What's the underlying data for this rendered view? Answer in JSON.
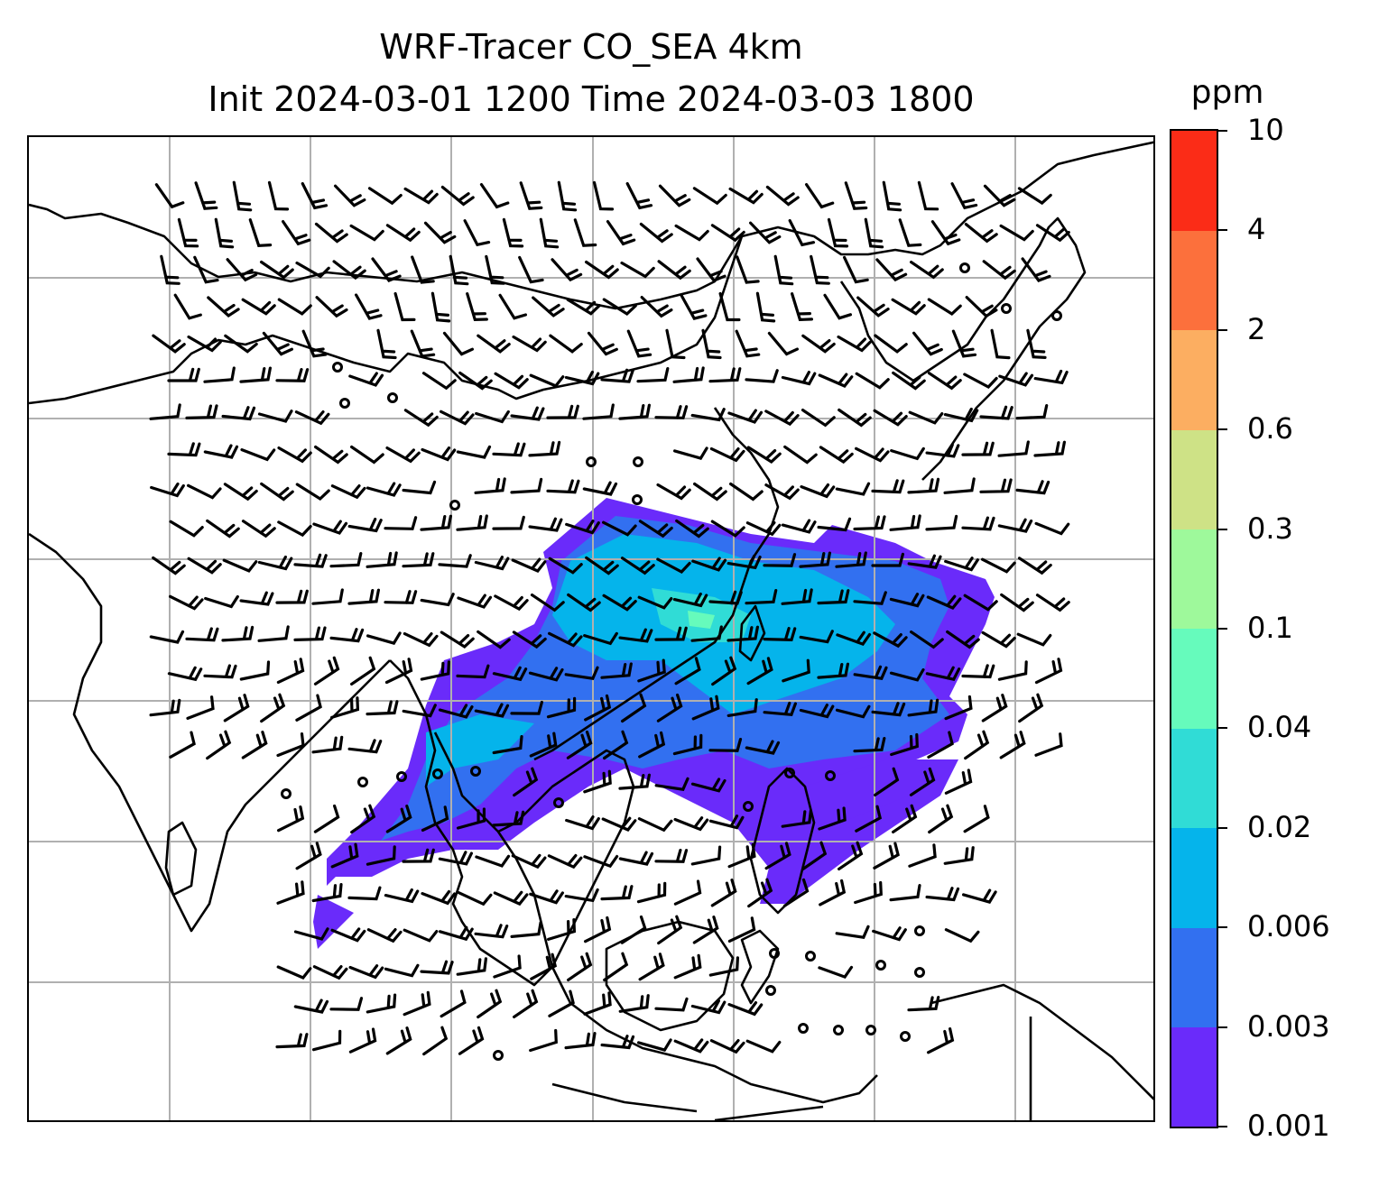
{
  "title": {
    "line1": "WRF-Tracer CO_SEA 4km",
    "line2": "Init 2024-03-01 1200 Time 2024-03-03 1800"
  },
  "colorbar": {
    "unit": "ppm",
    "levels": [
      "0.001",
      "0.003",
      "0.006",
      "0.02",
      "0.04",
      "0.1",
      "0.3",
      "0.6",
      "2",
      "4",
      "10"
    ],
    "colors": [
      "#6a2bfa",
      "#3270f0",
      "#05b4eb",
      "#30dcd6",
      "#66fbbc",
      "#9ef99b",
      "#cee286",
      "#fcae61",
      "#fc703c",
      "#fb2c17"
    ]
  },
  "map": {
    "coastline_color": "#000000",
    "grid_color": "#b0b0b0",
    "barb_color": "#000000"
  }
}
